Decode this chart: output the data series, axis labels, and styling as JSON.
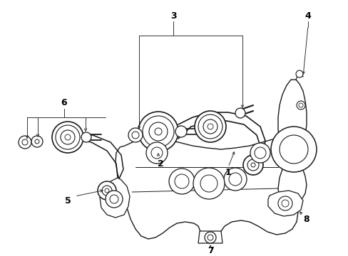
{
  "background_color": "#ffffff",
  "fig_width": 4.89,
  "fig_height": 3.6,
  "dpi": 100,
  "img_data": ""
}
